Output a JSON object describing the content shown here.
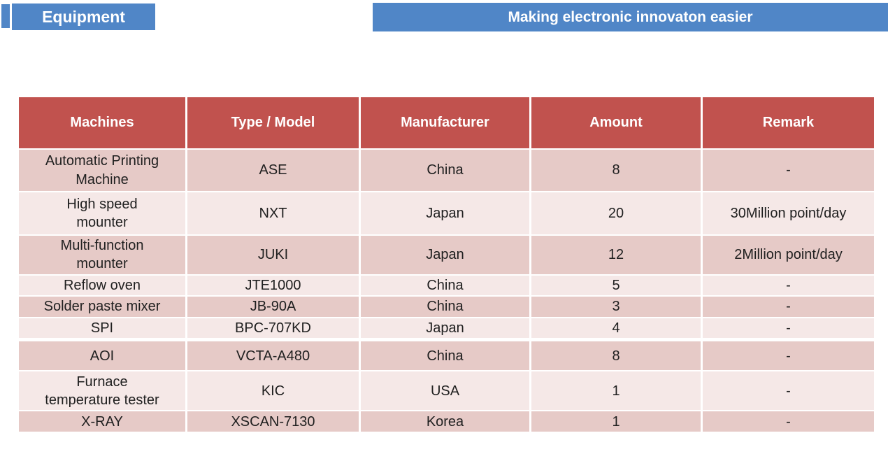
{
  "header": {
    "equipment_label": "Equipment",
    "tagline": "Making electronic innovaton easier"
  },
  "colors": {
    "banner_blue": "#5086c7",
    "table_header_red": "#c1524e",
    "row_dark_pink": "#e6cac7",
    "row_light_pink": "#f5e8e7",
    "body_text": "#202020",
    "header_text": "#ffffff"
  },
  "table": {
    "columns": [
      "Machines",
      "Type / Model",
      "Manufacturer",
      "Amount",
      "Remark"
    ],
    "rows": [
      {
        "machine": "Automatic Printing\nMachine",
        "model": "ASE",
        "manufacturer": "China",
        "amount": "8",
        "remark": "-"
      },
      {
        "machine": "High speed\nmounter",
        "model": "NXT",
        "manufacturer": "Japan",
        "amount": "20",
        "remark": "30Million point/day"
      },
      {
        "machine": "Multi-function\nmounter",
        "model": "JUKI",
        "manufacturer": "Japan",
        "amount": "12",
        "remark": "2Million point/day"
      },
      {
        "machine": "Reflow oven",
        "model": "JTE1000",
        "manufacturer": "China",
        "amount": "5",
        "remark": "-"
      },
      {
        "machine": "Solder paste mixer",
        "model": "JB-90A",
        "manufacturer": "China",
        "amount": "3",
        "remark": "-"
      },
      {
        "machine": "SPI",
        "model": "BPC-707KD",
        "manufacturer": "Japan",
        "amount": "4",
        "remark": "-"
      },
      {
        "machine": "AOI",
        "model": "VCTA-A480",
        "manufacturer": "China",
        "amount": "8",
        "remark": "-"
      },
      {
        "machine": "Furnace\ntemperature tester",
        "model": "KIC",
        "manufacturer": "USA",
        "amount": "1",
        "remark": "-"
      },
      {
        "machine": "X-RAY",
        "model": "XSCAN-7130",
        "manufacturer": "Korea",
        "amount": "1",
        "remark": "-"
      }
    ]
  }
}
